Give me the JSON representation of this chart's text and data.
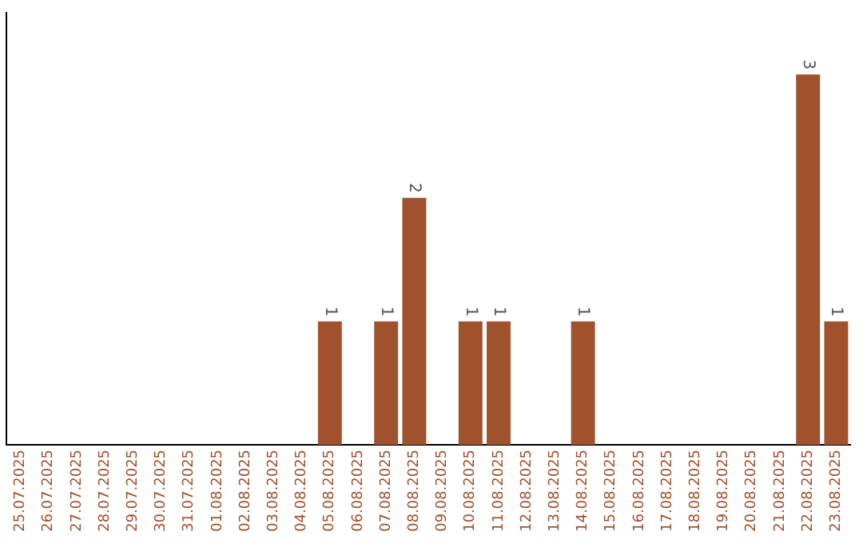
{
  "chart_data": {
    "type": "bar",
    "categories": [
      "25.07.2025",
      "26.07.2025",
      "27.07.2025",
      "28.07.2025",
      "29.07.2025",
      "30.07.2025",
      "31.07.2025",
      "01.08.2025",
      "02.08.2025",
      "03.08.2025",
      "04.08.2025",
      "05.08.2025",
      "06.08.2025",
      "07.08.2025",
      "08.08.2025",
      "09.08.2025",
      "10.08.2025",
      "11.08.2025",
      "12.08.2025",
      "13.08.2025",
      "14.08.2025",
      "15.08.2025",
      "16.08.2025",
      "17.08.2025",
      "18.08.2025",
      "19.08.2025",
      "20.08.2025",
      "21.08.2025",
      "22.08.2025",
      "23.08.2025"
    ],
    "values": [
      0,
      0,
      0,
      0,
      0,
      0,
      0,
      0,
      0,
      0,
      0,
      1,
      0,
      1,
      2,
      0,
      1,
      1,
      0,
      0,
      1,
      0,
      0,
      0,
      0,
      0,
      0,
      0,
      3,
      1
    ],
    "value_labels": [
      null,
      null,
      null,
      null,
      null,
      null,
      null,
      null,
      null,
      null,
      null,
      "1",
      null,
      "1",
      "2",
      null,
      "1",
      "1",
      null,
      null,
      "1",
      null,
      null,
      null,
      null,
      null,
      null,
      null,
      "3",
      "1"
    ],
    "color": "#a0522d",
    "grid": false,
    "legend": false,
    "tick_labels": "x"
  }
}
